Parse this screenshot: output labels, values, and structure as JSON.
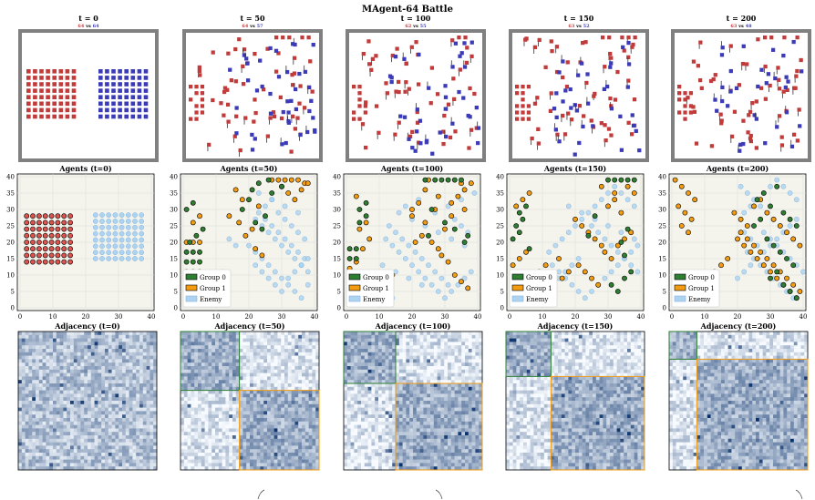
{
  "figure": {
    "title": "MAgent-64 Battle"
  },
  "timesteps": [
    {
      "label": "t = 0",
      "red": "64",
      "blue": "64",
      "agents_title": "Agents (t=0)",
      "adj_title": "Adjacency (t=0)"
    },
    {
      "label": "t = 50",
      "red": "64",
      "blue": "57",
      "agents_title": "Agents (t=50)",
      "adj_title": "Adjacency (t=50)"
    },
    {
      "label": "t = 100",
      "red": "62",
      "blue": "55",
      "agents_title": "Agents (t=100)",
      "adj_title": "Adjacency (t=100)"
    },
    {
      "label": "t = 150",
      "red": "63",
      "blue": "52",
      "agents_title": "Agents (t=150)",
      "adj_title": "Adjacency (t=150)"
    },
    {
      "label": "t = 200",
      "red": "63",
      "blue": "48",
      "agents_title": "Agents (t=200)",
      "adj_title": "Adjacency (t=200)"
    }
  ],
  "vs_word": "vs",
  "legend": {
    "items": [
      "Group 0",
      "Group 1",
      "Enemy"
    ]
  },
  "colors": {
    "red_team": "#c23b3b",
    "blue_team": "#3b3bb8",
    "group0": "#2e7d32",
    "group1": "#f39c12",
    "enemy": "#aed3f0",
    "initial_agents": "#d9534f",
    "scatter_bg": "#f4f4ec",
    "arena_border": "#808080",
    "heatmap_low": "#f7fbff",
    "heatmap_high": "#08306b"
  },
  "chart_data": [
    {
      "type": "scatter",
      "panel": "agents t=0",
      "xlim": [
        0,
        40
      ],
      "ylim": [
        0,
        40
      ],
      "xticks": [
        0,
        10,
        20,
        30,
        40
      ],
      "yticks": [
        0,
        5,
        10,
        15,
        20,
        25,
        30,
        35,
        40
      ],
      "grid": true,
      "series": [
        {
          "name": "Agents",
          "points": "8x8 grid, x 2–15, y 14–28"
        },
        {
          "name": "Enemy",
          "points": "8x8 grid, x 23–37, y 15–28"
        }
      ]
    },
    {
      "type": "scatter",
      "panel": "agents t=50",
      "xlim": [
        0,
        40
      ],
      "ylim": [
        0,
        40
      ],
      "legend": "bottom-left",
      "series": [
        {
          "name": "Group 0",
          "x": [
            1,
            3,
            5,
            1,
            3,
            5,
            2,
            4,
            6,
            1,
            3,
            18,
            20,
            22,
            24,
            21,
            23,
            26,
            27,
            25,
            30
          ],
          "y": [
            14,
            14,
            14,
            17,
            17,
            17,
            20,
            22,
            24,
            30,
            32,
            30,
            33,
            26,
            24,
            36,
            38,
            39,
            35,
            28,
            37
          ]
        },
        {
          "name": "Group 1",
          "x": [
            1,
            3,
            5,
            1,
            3,
            5,
            3,
            5,
            14,
            17,
            19,
            21,
            22,
            24,
            16,
            18,
            23,
            27,
            29,
            31,
            33,
            35,
            37,
            30,
            32,
            34,
            38,
            36
          ],
          "y": [
            11,
            11,
            11,
            20,
            20,
            20,
            26,
            28,
            28,
            26,
            22,
            24,
            18,
            16,
            36,
            33,
            31,
            39,
            39,
            39,
            39,
            39,
            38,
            37,
            35,
            33,
            38,
            36
          ],
          "noted_range": "x 1–38, y 11–39"
        },
        {
          "name": "Enemy",
          "x": [
            22,
            24,
            26,
            28,
            30,
            32,
            34,
            36,
            38,
            23,
            25,
            27,
            29,
            31,
            33,
            35,
            37,
            22,
            24,
            26,
            28,
            30,
            32,
            34,
            36,
            38,
            25,
            27,
            29,
            31,
            33,
            35,
            37,
            20,
            22,
            24,
            26,
            28,
            30,
            32,
            34,
            36,
            38,
            23,
            27,
            31,
            35,
            14,
            16,
            10,
            12
          ],
          "y": [
            27,
            25,
            23,
            21,
            19,
            17,
            15,
            13,
            11,
            29,
            27,
            25,
            23,
            21,
            19,
            17,
            15,
            13,
            11,
            9,
            7,
            5,
            9,
            11,
            13,
            15,
            31,
            33,
            29,
            27,
            25,
            23,
            21,
            19,
            17,
            15,
            13,
            11,
            9,
            7,
            5,
            3,
            7,
            35,
            33,
            31,
            29,
            21,
            19,
            9,
            11
          ]
        }
      ]
    },
    {
      "type": "scatter",
      "panel": "agents t=100",
      "xlim": [
        0,
        40
      ],
      "ylim": [
        0,
        40
      ],
      "legend": "bottom-left",
      "series": [
        {
          "name": "Group 0",
          "x": [
            1,
            3,
            1,
            3,
            4,
            6,
            4,
            6,
            24,
            27,
            29,
            31,
            33,
            35,
            25,
            33,
            36,
            37,
            26,
            30
          ],
          "y": [
            15,
            15,
            18,
            18,
            26,
            28,
            30,
            32,
            39,
            39,
            39,
            39,
            39,
            39,
            22,
            24,
            20,
            22,
            30,
            26
          ]
        },
        {
          "name": "Group 1",
          "x": [
            1,
            3,
            5,
            7,
            4,
            6,
            3,
            20,
            22,
            24,
            26,
            28,
            30,
            32,
            21,
            23,
            27,
            29,
            31,
            33,
            35,
            37,
            34,
            36,
            38,
            20,
            24,
            28,
            32,
            36,
            12,
            14,
            25,
            35
          ],
          "y": [
            12,
            14,
            18,
            21,
            24,
            26,
            34,
            28,
            32,
            26,
            20,
            18,
            24,
            28,
            20,
            22,
            30,
            16,
            14,
            10,
            8,
            6,
            34,
            36,
            38,
            30,
            36,
            34,
            32,
            30,
            8,
            10,
            39,
            38
          ]
        },
        {
          "name": "Enemy",
          "x": [
            12,
            14,
            16,
            18,
            20,
            22,
            24,
            26,
            28,
            30,
            32,
            34,
            36,
            38,
            13,
            15,
            17,
            19,
            21,
            23,
            25,
            27,
            29,
            31,
            33,
            35,
            37,
            11,
            15,
            19,
            23,
            27,
            31,
            35,
            39,
            16,
            20,
            24,
            28,
            32,
            36,
            10,
            14,
            18,
            22
          ],
          "y": [
            21,
            19,
            17,
            15,
            13,
            11,
            9,
            7,
            5,
            3,
            5,
            7,
            9,
            11,
            25,
            23,
            21,
            19,
            17,
            15,
            13,
            11,
            9,
            7,
            27,
            25,
            23,
            13,
            11,
            9,
            7,
            29,
            31,
            33,
            35,
            29,
            27,
            25,
            23,
            21,
            19,
            5,
            3,
            31,
            33
          ]
        }
      ]
    },
    {
      "type": "scatter",
      "panel": "agents t=150",
      "xlim": [
        0,
        40
      ],
      "ylim": [
        0,
        40
      ],
      "legend": "bottom-left",
      "series": [
        {
          "name": "Group 0",
          "x": [
            1,
            3,
            2,
            4,
            3,
            5,
            6,
            30,
            32,
            34,
            36,
            38,
            31,
            33,
            35,
            37,
            24,
            26,
            36,
            34,
            35
          ],
          "y": [
            21,
            23,
            25,
            27,
            29,
            31,
            18,
            39,
            39,
            39,
            39,
            39,
            7,
            5,
            9,
            11,
            22,
            28,
            24,
            20,
            16
          ]
        },
        {
          "name": "Group 1",
          "x": [
            1,
            3,
            5,
            2,
            4,
            6,
            20,
            22,
            24,
            26,
            28,
            21,
            23,
            25,
            27,
            29,
            31,
            33,
            35,
            37,
            36,
            38,
            30,
            32,
            34,
            16,
            18,
            13,
            9,
            11,
            15,
            28,
            32
          ],
          "y": [
            13,
            15,
            17,
            31,
            33,
            35,
            27,
            25,
            23,
            21,
            19,
            13,
            11,
            9,
            7,
            17,
            15,
            19,
            21,
            23,
            37,
            35,
            31,
            33,
            29,
            9,
            11,
            7,
            11,
            13,
            15,
            37,
            35
          ]
        },
        {
          "name": "Enemy",
          "x": [
            12,
            14,
            16,
            18,
            20,
            22,
            24,
            26,
            28,
            30,
            32,
            34,
            36,
            38,
            13,
            15,
            17,
            19,
            21,
            23,
            25,
            27,
            29,
            31,
            33,
            35,
            37,
            39,
            25,
            27,
            29,
            31,
            33,
            35,
            37,
            39,
            18,
            22,
            26,
            30,
            34,
            38,
            11,
            13,
            15,
            17,
            19,
            21
          ],
          "y": [
            17,
            19,
            21,
            23,
            25,
            27,
            29,
            31,
            33,
            35,
            37,
            35,
            33,
            31,
            13,
            11,
            9,
            7,
            5,
            3,
            5,
            7,
            9,
            11,
            13,
            15,
            17,
            19,
            25,
            23,
            21,
            19,
            17,
            15,
            13,
            11,
            31,
            29,
            27,
            25,
            23,
            21,
            5,
            7,
            9,
            11,
            13,
            15
          ]
        }
      ]
    },
    {
      "type": "scatter",
      "panel": "agents t=200",
      "xlim": [
        0,
        40
      ],
      "ylim": [
        0,
        40
      ],
      "legend": "bottom-left",
      "series": [
        {
          "name": "Group 0",
          "x": [
            26,
            28,
            30,
            32,
            34,
            36,
            38,
            29,
            31,
            33,
            35,
            37,
            30,
            32,
            34,
            36,
            38,
            25,
            27
          ],
          "y": [
            33,
            35,
            31,
            37,
            29,
            27,
            25,
            21,
            19,
            17,
            15,
            13,
            9,
            11,
            7,
            5,
            3,
            25,
            27
          ]
        },
        {
          "name": "Group 1",
          "x": [
            1,
            3,
            5,
            7,
            2,
            4,
            6,
            3,
            5,
            20,
            22,
            24,
            26,
            28,
            30,
            32,
            34,
            36,
            38,
            21,
            23,
            25,
            27,
            29,
            31,
            33,
            35,
            37,
            39,
            19,
            21,
            23,
            25,
            27,
            29,
            31,
            33,
            35,
            37,
            39,
            15,
            13,
            11,
            9,
            17
          ],
          "y": [
            39,
            37,
            35,
            33,
            31,
            29,
            27,
            25,
            23,
            21,
            19,
            17,
            15,
            13,
            11,
            9,
            7,
            5,
            3,
            23,
            21,
            19,
            17,
            15,
            13,
            11,
            9,
            7,
            5,
            29,
            27,
            25,
            31,
            33,
            29,
            27,
            25,
            23,
            21,
            19,
            13,
            11,
            9,
            7,
            15
          ]
        },
        {
          "name": "Enemy",
          "x": [
            20,
            22,
            24,
            26,
            28,
            30,
            32,
            34,
            36,
            38,
            21,
            23,
            25,
            27,
            29,
            31,
            33,
            35,
            37,
            39,
            22,
            24,
            26,
            28,
            30,
            32,
            34,
            36,
            38,
            23,
            25,
            27,
            29,
            31,
            33,
            35,
            37,
            39,
            28,
            30,
            32,
            34,
            36,
            38,
            40,
            26,
            24,
            22
          ],
          "y": [
            9,
            11,
            13,
            15,
            17,
            19,
            21,
            23,
            25,
            27,
            37,
            35,
            33,
            31,
            29,
            27,
            25,
            23,
            21,
            19,
            29,
            31,
            33,
            35,
            37,
            39,
            37,
            35,
            33,
            17,
            15,
            13,
            11,
            9,
            7,
            5,
            3,
            5,
            23,
            21,
            19,
            17,
            15,
            13,
            11,
            19,
            21,
            23
          ]
        }
      ]
    },
    {
      "type": "heatmap",
      "panel": "adjacency matrices",
      "size": 64,
      "timesteps": [
        "t=0",
        "t=50",
        "t=100",
        "t=150",
        "t=200"
      ],
      "group_split": [
        null,
        27,
        24,
        20,
        13
      ],
      "colormap": "Blues"
    }
  ]
}
